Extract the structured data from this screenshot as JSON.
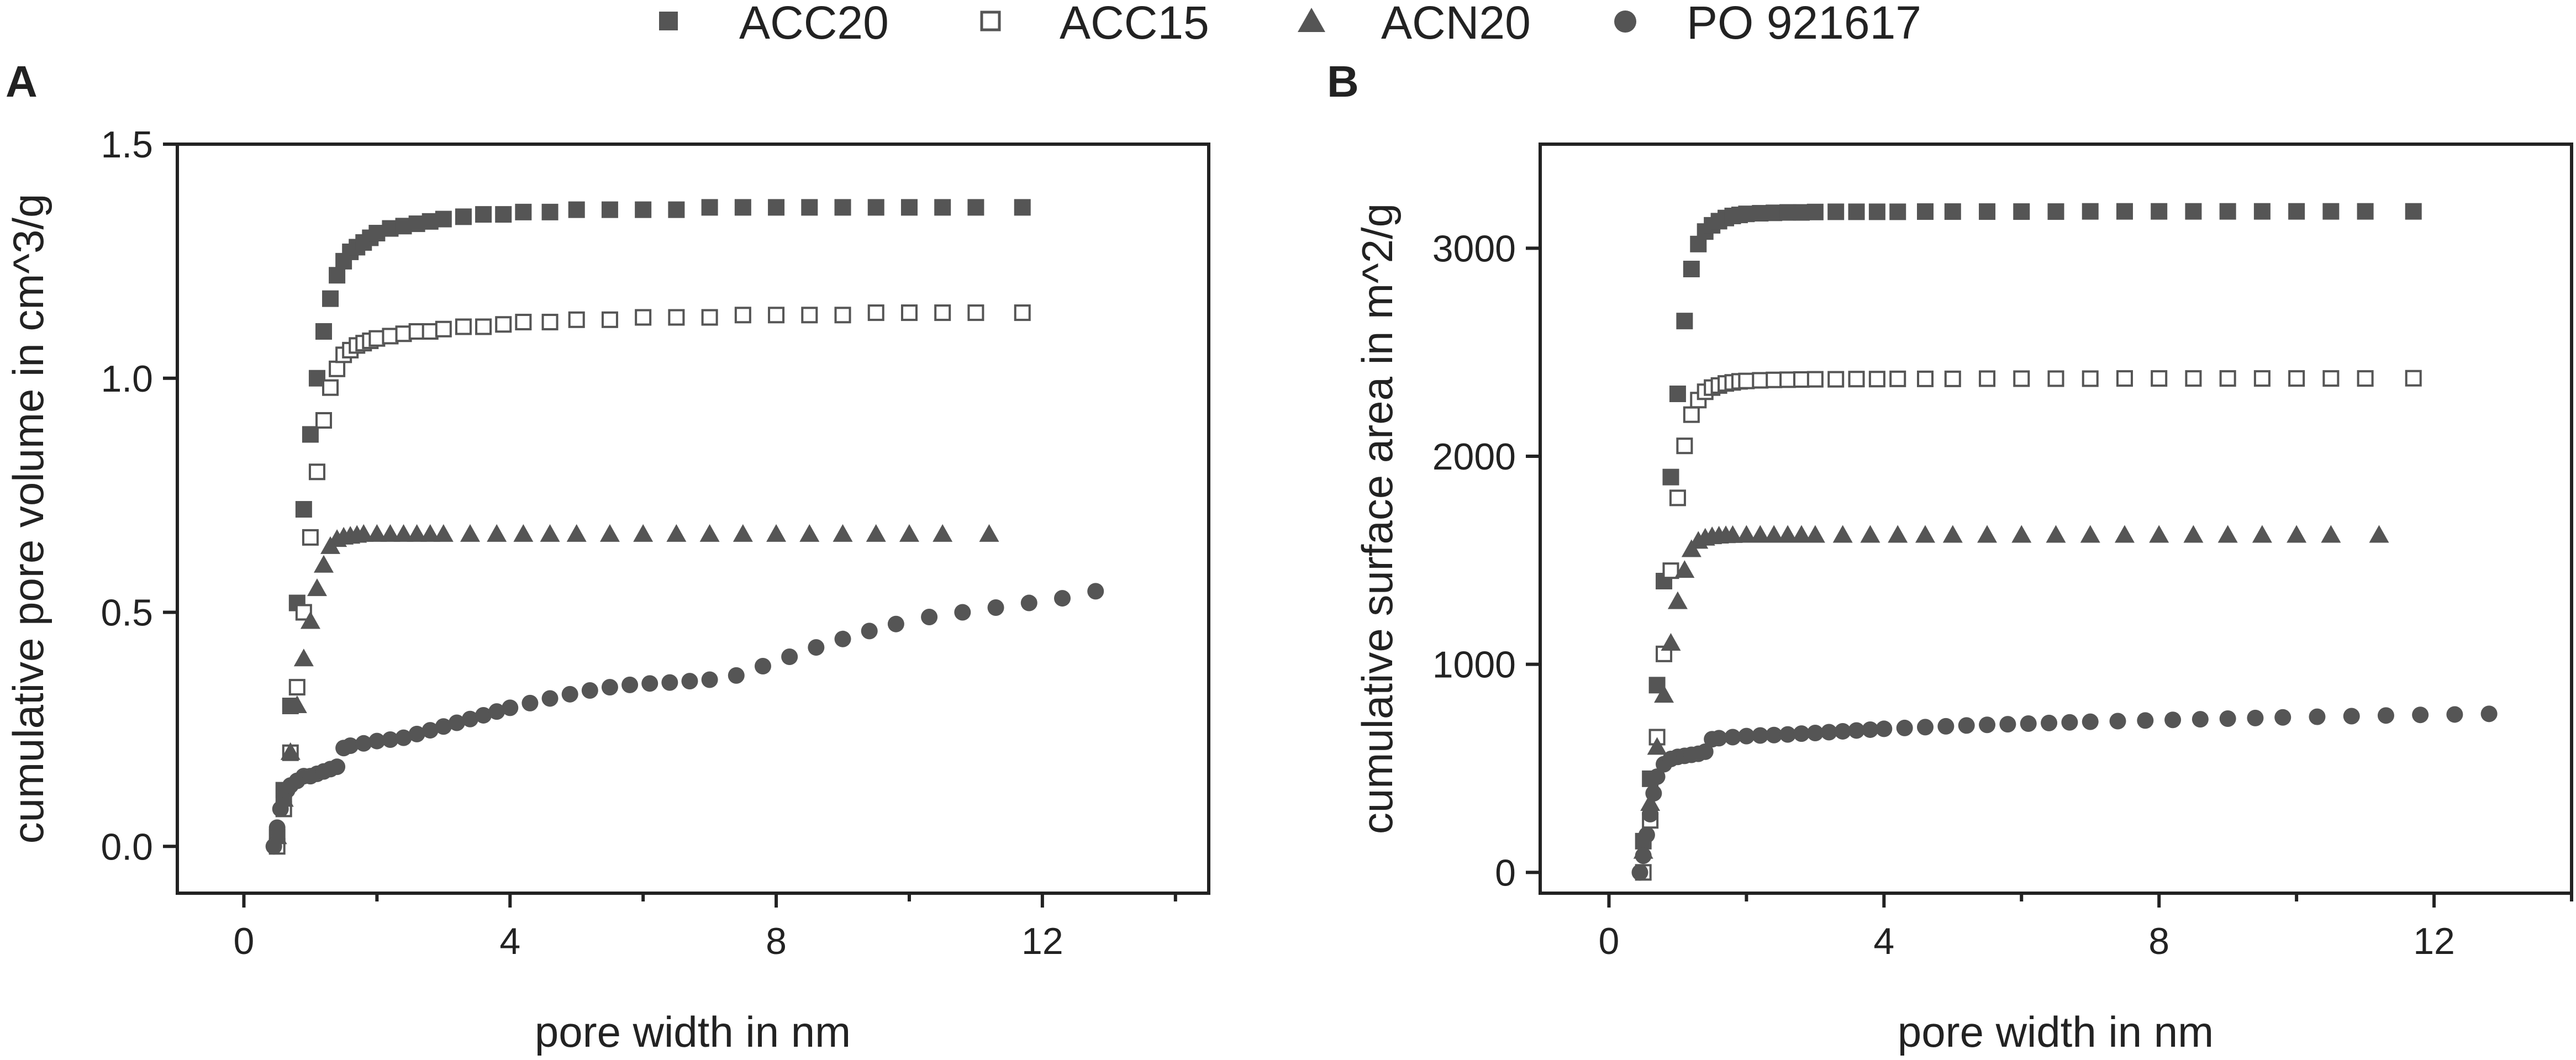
{
  "colors": {
    "marker": "#555555",
    "axis": "#222222",
    "background": "#ffffff"
  },
  "legend": [
    {
      "name": "ACC20",
      "marker": "square"
    },
    {
      "name": "ACC15",
      "marker": "open-square"
    },
    {
      "name": "ACN20",
      "marker": "triangle"
    },
    {
      "name": "PO 921617",
      "marker": "circle"
    }
  ],
  "chart_data": [
    {
      "panel": "A",
      "type": "scatter",
      "xlabel": "pore width in nm",
      "ylabel": "cumulative pore volume in cm^3/g",
      "xlim": [
        -1,
        14.5
      ],
      "ylim": [
        -0.1,
        1.5
      ],
      "xticks": [
        0,
        4,
        8,
        12
      ],
      "xminor": [
        2,
        6,
        10,
        14
      ],
      "yticks": [
        0.0,
        0.5,
        1.0,
        1.5
      ],
      "ytick_labels": [
        "0.0",
        "0.5",
        "1.0",
        "1.5"
      ],
      "series": [
        {
          "name": "ACC20",
          "marker": "square",
          "x": [
            0.5,
            0.6,
            0.7,
            0.8,
            0.9,
            1.0,
            1.1,
            1.2,
            1.3,
            1.4,
            1.5,
            1.6,
            1.7,
            1.8,
            1.9,
            2.0,
            2.2,
            2.4,
            2.6,
            2.8,
            3.0,
            3.3,
            3.6,
            3.9,
            4.2,
            4.6,
            5.0,
            5.5,
            6.0,
            6.5,
            7.0,
            7.5,
            8.0,
            8.5,
            9.0,
            9.5,
            10.0,
            10.5,
            11.0,
            11.7
          ],
          "y": [
            0.02,
            0.12,
            0.3,
            0.52,
            0.72,
            0.88,
            1.0,
            1.1,
            1.17,
            1.22,
            1.25,
            1.27,
            1.28,
            1.29,
            1.3,
            1.31,
            1.32,
            1.325,
            1.33,
            1.335,
            1.34,
            1.345,
            1.35,
            1.35,
            1.355,
            1.355,
            1.36,
            1.36,
            1.36,
            1.36,
            1.365,
            1.365,
            1.365,
            1.365,
            1.365,
            1.365,
            1.365,
            1.365,
            1.365,
            1.365
          ]
        },
        {
          "name": "ACC15",
          "marker": "open-square",
          "x": [
            0.5,
            0.6,
            0.7,
            0.8,
            0.9,
            1.0,
            1.1,
            1.2,
            1.3,
            1.4,
            1.5,
            1.6,
            1.7,
            1.8,
            1.9,
            2.0,
            2.2,
            2.4,
            2.6,
            2.8,
            3.0,
            3.3,
            3.6,
            3.9,
            4.2,
            4.6,
            5.0,
            5.5,
            6.0,
            6.5,
            7.0,
            7.5,
            8.0,
            8.5,
            9.0,
            9.5,
            10.0,
            10.5,
            11.0,
            11.7
          ],
          "y": [
            0.0,
            0.08,
            0.2,
            0.34,
            0.5,
            0.66,
            0.8,
            0.91,
            0.98,
            1.02,
            1.05,
            1.06,
            1.07,
            1.075,
            1.08,
            1.085,
            1.09,
            1.095,
            1.1,
            1.1,
            1.105,
            1.11,
            1.11,
            1.115,
            1.12,
            1.12,
            1.125,
            1.125,
            1.13,
            1.13,
            1.13,
            1.135,
            1.135,
            1.135,
            1.135,
            1.14,
            1.14,
            1.14,
            1.14,
            1.14
          ]
        },
        {
          "name": "ACN20",
          "marker": "triangle",
          "x": [
            0.5,
            0.6,
            0.7,
            0.8,
            0.9,
            1.0,
            1.1,
            1.2,
            1.3,
            1.4,
            1.5,
            1.6,
            1.7,
            1.8,
            2.0,
            2.2,
            2.4,
            2.6,
            2.8,
            3.0,
            3.4,
            3.8,
            4.2,
            4.6,
            5.0,
            5.5,
            6.0,
            6.5,
            7.0,
            7.5,
            8.0,
            8.5,
            9.0,
            9.5,
            10.0,
            10.5,
            11.2
          ],
          "y": [
            0.02,
            0.1,
            0.2,
            0.3,
            0.4,
            0.48,
            0.55,
            0.6,
            0.64,
            0.655,
            0.66,
            0.662,
            0.664,
            0.666,
            0.666,
            0.666,
            0.666,
            0.666,
            0.666,
            0.666,
            0.666,
            0.666,
            0.666,
            0.666,
            0.666,
            0.666,
            0.666,
            0.666,
            0.666,
            0.666,
            0.666,
            0.666,
            0.666,
            0.666,
            0.666,
            0.666,
            0.666
          ]
        },
        {
          "name": "PO 921617",
          "marker": "circle",
          "x": [
            0.45,
            0.5,
            0.55,
            0.6,
            0.65,
            0.7,
            0.8,
            0.9,
            1.0,
            1.1,
            1.2,
            1.3,
            1.4,
            1.5,
            1.6,
            1.8,
            2.0,
            2.2,
            2.4,
            2.6,
            2.8,
            3.0,
            3.2,
            3.4,
            3.6,
            3.8,
            4.0,
            4.3,
            4.6,
            4.9,
            5.2,
            5.5,
            5.8,
            6.1,
            6.4,
            6.7,
            7.0,
            7.4,
            7.8,
            8.2,
            8.6,
            9.0,
            9.4,
            9.8,
            10.3,
            10.8,
            11.3,
            11.8,
            12.3,
            12.8
          ],
          "y": [
            0.0,
            0.04,
            0.08,
            0.1,
            0.12,
            0.13,
            0.14,
            0.15,
            0.15,
            0.155,
            0.16,
            0.165,
            0.17,
            0.21,
            0.215,
            0.22,
            0.225,
            0.228,
            0.232,
            0.24,
            0.248,
            0.256,
            0.264,
            0.272,
            0.28,
            0.288,
            0.296,
            0.306,
            0.316,
            0.325,
            0.333,
            0.34,
            0.345,
            0.348,
            0.35,
            0.353,
            0.356,
            0.365,
            0.385,
            0.405,
            0.425,
            0.443,
            0.46,
            0.475,
            0.49,
            0.5,
            0.51,
            0.52,
            0.53,
            0.545
          ]
        }
      ]
    },
    {
      "panel": "B",
      "type": "scatter",
      "xlabel": "pore width in nm",
      "ylabel": "cumulative surface area in m^2/g",
      "xlim": [
        -1,
        14
      ],
      "ylim": [
        -100,
        3500
      ],
      "xticks": [
        0,
        4,
        8,
        12
      ],
      "xminor": [
        2,
        6,
        10,
        14
      ],
      "yticks": [
        0,
        1000,
        2000,
        3000
      ],
      "ytick_labels": [
        "0",
        "1000",
        "2000",
        "3000"
      ],
      "series": [
        {
          "name": "ACC20",
          "marker": "square",
          "x": [
            0.5,
            0.6,
            0.7,
            0.8,
            0.9,
            1.0,
            1.1,
            1.2,
            1.3,
            1.4,
            1.5,
            1.6,
            1.7,
            1.8,
            1.9,
            2.0,
            2.2,
            2.4,
            2.6,
            2.8,
            3.0,
            3.3,
            3.6,
            3.9,
            4.2,
            4.6,
            5.0,
            5.5,
            6.0,
            6.5,
            7.0,
            7.5,
            8.0,
            8.5,
            9.0,
            9.5,
            10.0,
            10.5,
            11.0,
            11.7
          ],
          "y": [
            150,
            450,
            900,
            1400,
            1900,
            2300,
            2650,
            2900,
            3020,
            3080,
            3110,
            3130,
            3145,
            3155,
            3160,
            3165,
            3168,
            3170,
            3172,
            3172,
            3174,
            3175,
            3175,
            3175,
            3175,
            3176,
            3176,
            3176,
            3176,
            3176,
            3177,
            3177,
            3177,
            3177,
            3177,
            3177,
            3177,
            3177,
            3177,
            3177
          ]
        },
        {
          "name": "ACC15",
          "marker": "open-square",
          "x": [
            0.5,
            0.6,
            0.7,
            0.8,
            0.9,
            1.0,
            1.1,
            1.2,
            1.3,
            1.4,
            1.5,
            1.6,
            1.7,
            1.8,
            1.9,
            2.0,
            2.2,
            2.4,
            2.6,
            2.8,
            3.0,
            3.3,
            3.6,
            3.9,
            4.2,
            4.6,
            5.0,
            5.5,
            6.0,
            6.5,
            7.0,
            7.5,
            8.0,
            8.5,
            9.0,
            9.5,
            10.0,
            10.5,
            11.0,
            11.7
          ],
          "y": [
            0,
            250,
            650,
            1050,
            1450,
            1800,
            2050,
            2200,
            2270,
            2310,
            2330,
            2340,
            2350,
            2355,
            2360,
            2362,
            2365,
            2367,
            2368,
            2369,
            2370,
            2370,
            2371,
            2371,
            2372,
            2372,
            2372,
            2373,
            2373,
            2373,
            2373,
            2374,
            2374,
            2374,
            2374,
            2374,
            2374,
            2374,
            2374,
            2375
          ]
        },
        {
          "name": "ACN20",
          "marker": "triangle",
          "x": [
            0.5,
            0.6,
            0.7,
            0.8,
            0.9,
            1.0,
            1.1,
            1.2,
            1.3,
            1.4,
            1.5,
            1.6,
            1.7,
            1.8,
            2.0,
            2.2,
            2.4,
            2.6,
            2.8,
            3.0,
            3.4,
            3.8,
            4.2,
            4.6,
            5.0,
            5.5,
            6.0,
            6.5,
            7.0,
            7.5,
            8.0,
            8.5,
            9.0,
            9.5,
            10.0,
            10.5,
            11.2
          ],
          "y": [
            100,
            330,
            600,
            850,
            1100,
            1300,
            1450,
            1550,
            1590,
            1605,
            1612,
            1615,
            1617,
            1618,
            1619,
            1619,
            1619,
            1619,
            1619,
            1619,
            1619,
            1619,
            1619,
            1619,
            1619,
            1619,
            1619,
            1619,
            1619,
            1619,
            1619,
            1619,
            1619,
            1619,
            1619,
            1619,
            1619
          ]
        },
        {
          "name": "PO 921617",
          "marker": "circle",
          "x": [
            0.45,
            0.5,
            0.55,
            0.6,
            0.65,
            0.7,
            0.8,
            0.9,
            1.0,
            1.1,
            1.2,
            1.3,
            1.4,
            1.5,
            1.6,
            1.8,
            2.0,
            2.2,
            2.4,
            2.6,
            2.8,
            3.0,
            3.2,
            3.4,
            3.6,
            3.8,
            4.0,
            4.3,
            4.6,
            4.9,
            5.2,
            5.5,
            5.8,
            6.1,
            6.4,
            6.7,
            7.0,
            7.4,
            7.8,
            8.2,
            8.6,
            9.0,
            9.4,
            9.8,
            10.3,
            10.8,
            11.3,
            11.8,
            12.3,
            12.8
          ],
          "y": [
            0,
            80,
            180,
            280,
            380,
            460,
            520,
            545,
            555,
            560,
            565,
            570,
            580,
            640,
            645,
            650,
            655,
            658,
            660,
            663,
            667,
            670,
            674,
            678,
            682,
            686,
            690,
            694,
            698,
            702,
            706,
            709,
            712,
            715,
            718,
            721,
            724,
            727,
            730,
            733,
            736,
            739,
            742,
            745,
            748,
            751,
            754,
            757,
            759,
            762
          ]
        }
      ]
    }
  ]
}
